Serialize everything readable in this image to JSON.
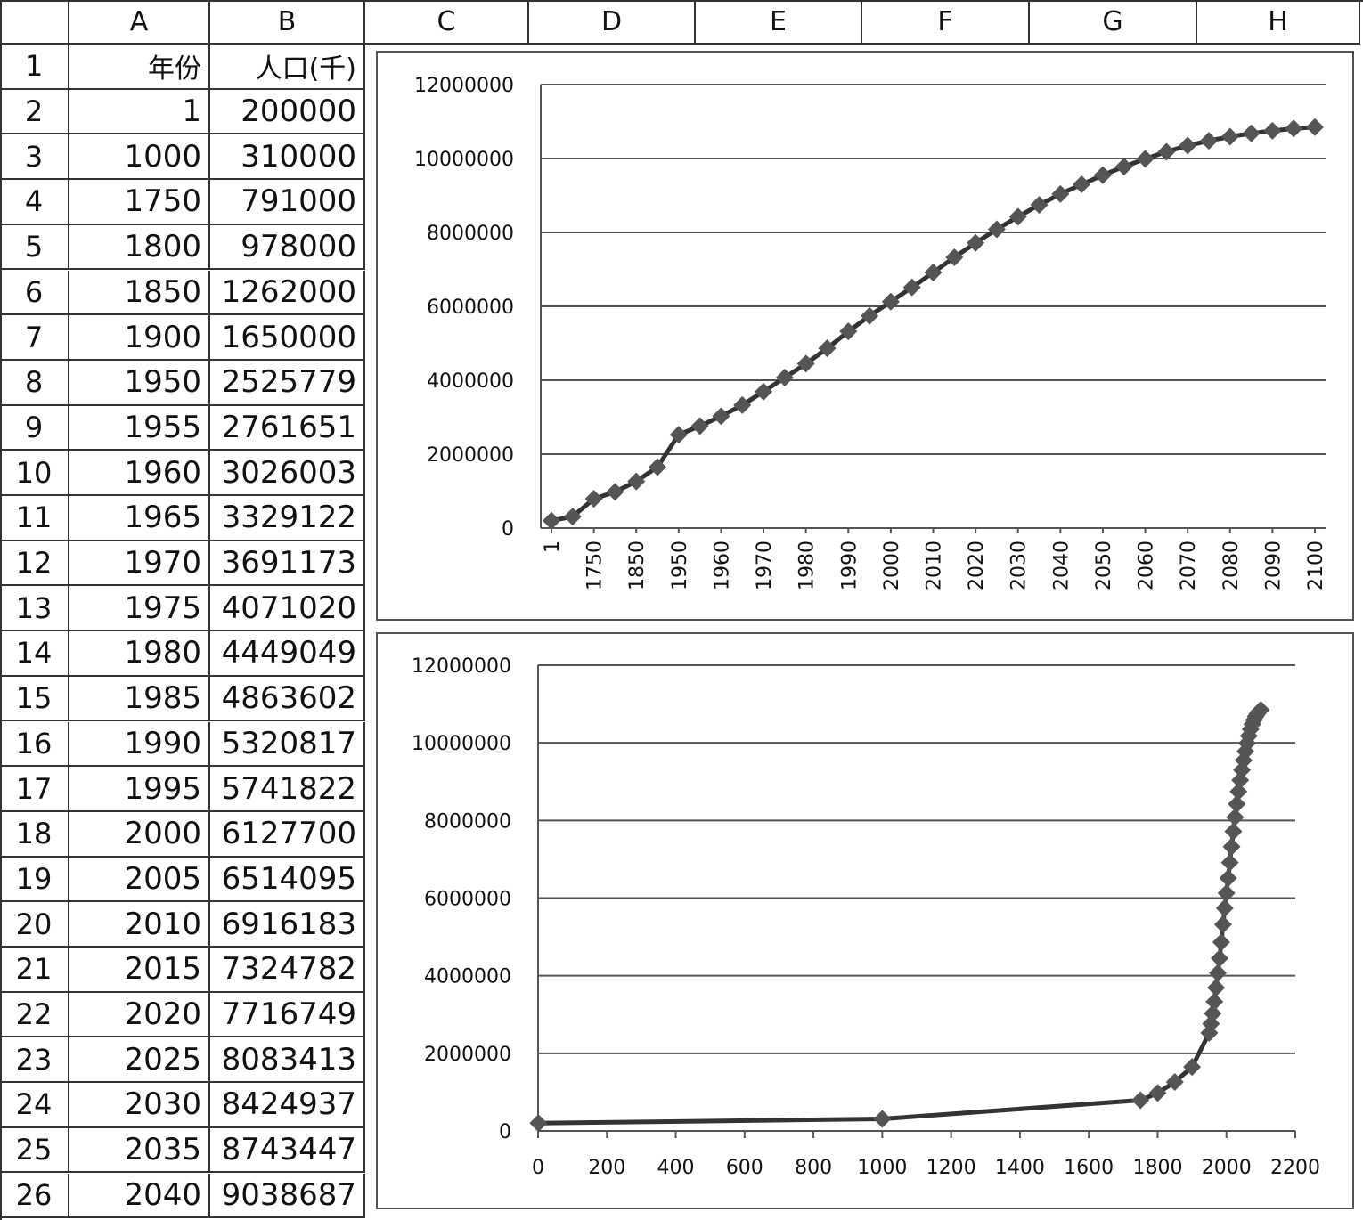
{
  "columns": [
    "A",
    "B",
    "C",
    "D",
    "E",
    "F",
    "G",
    "H"
  ],
  "header_row": {
    "a": "年份",
    "b": "人口(千)"
  },
  "rows": [
    {
      "n": "1",
      "a": "年份",
      "b": "人口(千)"
    },
    {
      "n": "2",
      "a": "1",
      "b": "200000"
    },
    {
      "n": "3",
      "a": "1000",
      "b": "310000"
    },
    {
      "n": "4",
      "a": "1750",
      "b": "791000"
    },
    {
      "n": "5",
      "a": "1800",
      "b": "978000"
    },
    {
      "n": "6",
      "a": "1850",
      "b": "1262000"
    },
    {
      "n": "7",
      "a": "1900",
      "b": "1650000"
    },
    {
      "n": "8",
      "a": "1950",
      "b": "2525779"
    },
    {
      "n": "9",
      "a": "1955",
      "b": "2761651"
    },
    {
      "n": "10",
      "a": "1960",
      "b": "3026003"
    },
    {
      "n": "11",
      "a": "1965",
      "b": "3329122"
    },
    {
      "n": "12",
      "a": "1970",
      "b": "3691173"
    },
    {
      "n": "13",
      "a": "1975",
      "b": "4071020"
    },
    {
      "n": "14",
      "a": "1980",
      "b": "4449049"
    },
    {
      "n": "15",
      "a": "1985",
      "b": "4863602"
    },
    {
      "n": "16",
      "a": "1990",
      "b": "5320817"
    },
    {
      "n": "17",
      "a": "1995",
      "b": "5741822"
    },
    {
      "n": "18",
      "a": "2000",
      "b": "6127700"
    },
    {
      "n": "19",
      "a": "2005",
      "b": "6514095"
    },
    {
      "n": "20",
      "a": "2010",
      "b": "6916183"
    },
    {
      "n": "21",
      "a": "2015",
      "b": "7324782"
    },
    {
      "n": "22",
      "a": "2020",
      "b": "7716749"
    },
    {
      "n": "23",
      "a": "2025",
      "b": "8083413"
    },
    {
      "n": "24",
      "a": "2030",
      "b": "8424937"
    },
    {
      "n": "25",
      "a": "2035",
      "b": "8743447"
    },
    {
      "n": "26",
      "a": "2040",
      "b": "9038687"
    }
  ],
  "chart_data": [
    {
      "type": "line",
      "x": [
        "1",
        "1000",
        "1750",
        "1800",
        "1850",
        "1900",
        "1950",
        "1955",
        "1960",
        "1965",
        "1970",
        "1975",
        "1980",
        "1985",
        "1990",
        "1995",
        "2000",
        "2005",
        "2010",
        "2015",
        "2020",
        "2025",
        "2030",
        "2035",
        "2040",
        "2045",
        "2050",
        "2055",
        "2060",
        "2065",
        "2070",
        "2075",
        "2080",
        "2085",
        "2090",
        "2095",
        "2100"
      ],
      "x_tick_labels": [
        "1",
        "1750",
        "1850",
        "1950",
        "1960",
        "1970",
        "1980",
        "1990",
        "2000",
        "2010",
        "2020",
        "2030",
        "2040",
        "2050",
        "2060",
        "2070",
        "2080",
        "2090",
        "2100"
      ],
      "y": [
        200000,
        310000,
        791000,
        978000,
        1262000,
        1650000,
        2525779,
        2761651,
        3026003,
        3329122,
        3691173,
        4071020,
        4449049,
        4863602,
        5320817,
        5741822,
        6127700,
        6514095,
        6916183,
        7324782,
        7716749,
        8083413,
        8424937,
        8743447,
        9038687,
        9300000,
        9550000,
        9780000,
        9990000,
        10180000,
        10350000,
        10480000,
        10590000,
        10680000,
        10750000,
        10810000,
        10850000
      ],
      "ylim": [
        0,
        12000000
      ],
      "y_ticks": [
        "0",
        "2000000",
        "4000000",
        "6000000",
        "8000000",
        "10000000",
        "12000000"
      ],
      "grid": true,
      "marker": "diamond"
    },
    {
      "type": "scatter",
      "x": [
        1,
        1000,
        1750,
        1800,
        1850,
        1900,
        1950,
        1955,
        1960,
        1965,
        1970,
        1975,
        1980,
        1985,
        1990,
        1995,
        2000,
        2005,
        2010,
        2015,
        2020,
        2025,
        2030,
        2035,
        2040,
        2045,
        2050,
        2055,
        2060,
        2065,
        2070,
        2075,
        2080,
        2085,
        2090,
        2095,
        2100
      ],
      "y": [
        200000,
        310000,
        791000,
        978000,
        1262000,
        1650000,
        2525779,
        2761651,
        3026003,
        3329122,
        3691173,
        4071020,
        4449049,
        4863602,
        5320817,
        5741822,
        6127700,
        6514095,
        6916183,
        7324782,
        7716749,
        8083413,
        8424937,
        8743447,
        9038687,
        9300000,
        9550000,
        9780000,
        9990000,
        10180000,
        10350000,
        10480000,
        10590000,
        10680000,
        10750000,
        10810000,
        10850000
      ],
      "xlim": [
        0,
        2200
      ],
      "ylim": [
        0,
        12000000
      ],
      "x_ticks": [
        "0",
        "200",
        "400",
        "600",
        "800",
        "1000",
        "1200",
        "1400",
        "1600",
        "1800",
        "2000",
        "2200"
      ],
      "y_ticks": [
        "0",
        "2000000",
        "4000000",
        "6000000",
        "8000000",
        "10000000",
        "12000000"
      ],
      "grid": true,
      "marker": "diamond",
      "connected": true
    }
  ]
}
